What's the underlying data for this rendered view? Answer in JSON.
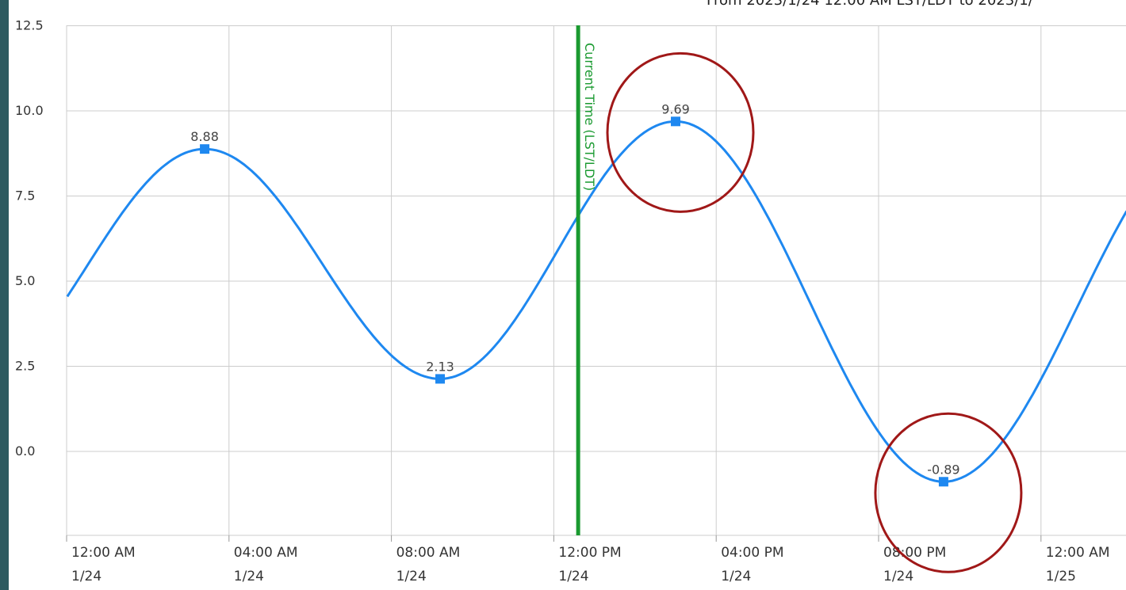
{
  "header": {
    "text": "From 2023/1/24 12:00 AM LST/LDT to 2023/1/"
  },
  "chart_data": {
    "type": "line",
    "title": "",
    "xlabel": "",
    "ylabel": "",
    "ylim": [
      -2.0,
      12.5
    ],
    "xlim_hours": [
      0,
      26
    ],
    "y_ticks": [
      "12.5",
      "10.0",
      "7.5",
      "5.0",
      "2.5",
      "0.0"
    ],
    "x_ticks": [
      {
        "time": "12:00 AM",
        "date": "1/24"
      },
      {
        "time": "04:00 AM",
        "date": "1/24"
      },
      {
        "time": "08:00 AM",
        "date": "1/24"
      },
      {
        "time": "12:00 PM",
        "date": "1/24"
      },
      {
        "time": "04:00 PM",
        "date": "1/24"
      },
      {
        "time": "08:00 PM",
        "date": "1/24"
      },
      {
        "time": "12:00 AM",
        "date": "1/25"
      }
    ],
    "current_time": {
      "label": "Current Time (LST/LDT)",
      "hour": 12.6,
      "color": "#1a9a30"
    },
    "extrema": [
      {
        "hour": 3.4,
        "value": 8.88,
        "label": "8.88"
      },
      {
        "hour": 9.2,
        "value": 2.13,
        "label": "2.13"
      },
      {
        "hour": 15.0,
        "value": 9.69,
        "label": "9.69"
      },
      {
        "hour": 21.6,
        "value": -0.89,
        "label": "-0.89"
      }
    ],
    "series_color": "#1e88f0",
    "grid": true,
    "annotations": [
      {
        "type": "circle",
        "target": "9.69",
        "color": "#a01818"
      },
      {
        "type": "circle",
        "target": "-0.89",
        "color": "#a01818"
      }
    ]
  }
}
